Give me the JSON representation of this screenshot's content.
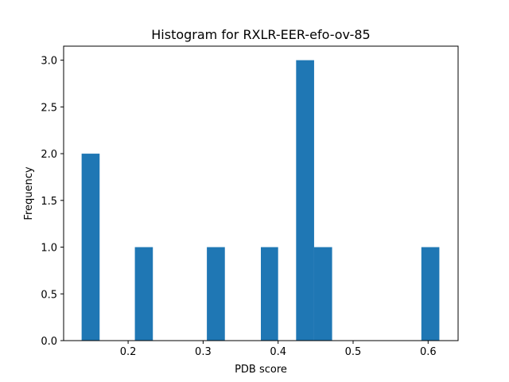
{
  "chart_data": {
    "type": "bar",
    "title": "Histogram for RXLR-EER-efo-ov-85",
    "xlabel": "PDB score",
    "ylabel": "Frequency",
    "xlim": [
      0.114,
      0.64
    ],
    "ylim": [
      0,
      3.15
    ],
    "xticks": [
      0.2,
      0.3,
      0.4,
      0.5,
      0.6
    ],
    "xtick_labels": [
      "0.2",
      "0.3",
      "0.4",
      "0.5",
      "0.6"
    ],
    "yticks": [
      0.0,
      0.5,
      1.0,
      1.5,
      2.0,
      2.5,
      3.0
    ],
    "ytick_labels": [
      "0.0",
      "0.5",
      "1.0",
      "1.5",
      "2.0",
      "2.5",
      "3.0"
    ],
    "bins": [
      {
        "start": 0.138,
        "end": 0.162,
        "count": 2
      },
      {
        "start": 0.209,
        "end": 0.233,
        "count": 1
      },
      {
        "start": 0.305,
        "end": 0.329,
        "count": 1
      },
      {
        "start": 0.377,
        "end": 0.4,
        "count": 1
      },
      {
        "start": 0.424,
        "end": 0.448,
        "count": 3
      },
      {
        "start": 0.448,
        "end": 0.472,
        "count": 1
      },
      {
        "start": 0.591,
        "end": 0.615,
        "count": 1
      }
    ],
    "bar_color": "#1f77b4",
    "grid": false,
    "legend": "none"
  }
}
